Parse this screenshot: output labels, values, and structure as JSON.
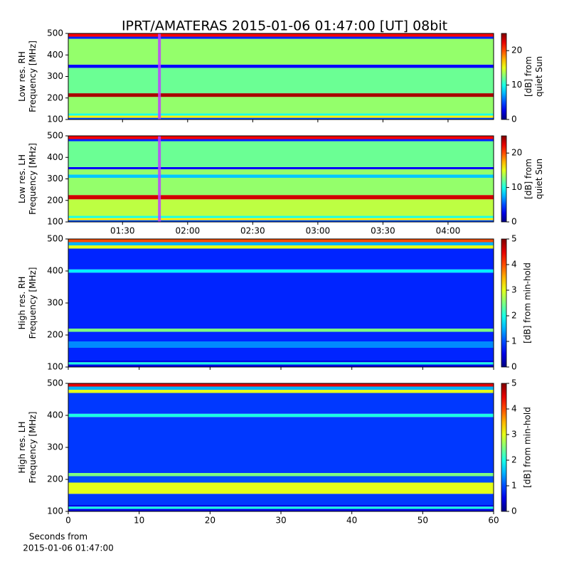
{
  "chart_data": [
    {
      "type": "heatmap",
      "title": "IPRT/AMATERAS 2015-01-06 01:47:00 [UT]   08bit",
      "ylabel": [
        "Low res. RH",
        "Frequency [MHz]"
      ],
      "xlim": [
        65,
        261
      ],
      "xticks": [
        {
          "value": 90,
          "label": "01:30"
        },
        {
          "value": 120,
          "label": "02:00"
        },
        {
          "value": 150,
          "label": "02:30"
        },
        {
          "value": 180,
          "label": "03:00"
        },
        {
          "value": 210,
          "label": "03:30"
        },
        {
          "value": 240,
          "label": "04:00"
        }
      ],
      "xticklabels": false,
      "ylim": [
        100,
        500
      ],
      "yticks": [
        100,
        200,
        300,
        400,
        500
      ],
      "ybins": [
        100,
        108,
        118,
        128,
        205,
        222,
        340,
        355,
        475,
        485,
        500
      ],
      "values": [
        5,
        16,
        10,
        13,
        24,
        12,
        3,
        13,
        4,
        22
      ],
      "marker_x": 107,
      "marker_color": "#c040ff",
      "clim": [
        0,
        25
      ],
      "cticks": [
        0,
        10,
        20
      ],
      "clabel": [
        "[dB] from",
        "quiet Sun"
      ]
    },
    {
      "type": "heatmap",
      "ylabel": [
        "Low res. LH",
        "Frequency [MHz]"
      ],
      "xlim": [
        65,
        261
      ],
      "xticks": [
        {
          "value": 90,
          "label": "01:30"
        },
        {
          "value": 120,
          "label": "02:00"
        },
        {
          "value": 150,
          "label": "02:30"
        },
        {
          "value": 180,
          "label": "03:00"
        },
        {
          "value": 210,
          "label": "03:30"
        },
        {
          "value": 240,
          "label": "04:00"
        }
      ],
      "xticklabels": true,
      "ylim": [
        100,
        500
      ],
      "yticks": [
        100,
        200,
        300,
        400,
        500
      ],
      "ybins": [
        100,
        108,
        118,
        128,
        205,
        225,
        305,
        320,
        345,
        355,
        475,
        485,
        500
      ],
      "values": [
        5,
        16,
        10,
        14,
        23,
        13,
        8,
        13,
        3,
        12,
        4,
        22
      ],
      "marker_x": 107,
      "marker_color": "#c040ff",
      "clim": [
        0,
        25
      ],
      "cticks": [
        0,
        10,
        20
      ],
      "clabel": [
        "[dB] from",
        "quiet Sun"
      ]
    },
    {
      "type": "heatmap",
      "ylabel": [
        "High res. RH",
        "Frequency [MHz]"
      ],
      "xlim": [
        0,
        60
      ],
      "xticks": [
        0,
        10,
        20,
        30,
        40,
        50,
        60
      ],
      "xticklabels": false,
      "ylim": [
        100,
        500
      ],
      "yticks": [
        100,
        200,
        300,
        400,
        500
      ],
      "ybins": [
        100,
        108,
        115,
        120,
        160,
        180,
        210,
        220,
        395,
        405,
        470,
        480,
        490,
        500
      ],
      "values": [
        0.5,
        2,
        0.5,
        0.8,
        1.3,
        0.8,
        2.5,
        0.8,
        1.8,
        0.8,
        3,
        1.5,
        4
      ],
      "clim": [
        0,
        5
      ],
      "cticks": [
        0,
        1,
        2,
        3,
        4,
        5
      ],
      "clabel": [
        "[dB] from min-hold"
      ]
    },
    {
      "type": "heatmap",
      "ylabel": [
        "High res. LH",
        "Frequency [MHz]"
      ],
      "xlim": [
        0,
        60
      ],
      "xticks": [
        0,
        10,
        20,
        30,
        40,
        50,
        60
      ],
      "xticklabels": true,
      "xlabel": [
        "Seconds from",
        "2015-01-06 01:47:00"
      ],
      "ylim": [
        100,
        500
      ],
      "yticks": [
        100,
        200,
        300,
        400,
        500
      ],
      "ybins": [
        100,
        108,
        115,
        120,
        155,
        190,
        210,
        220,
        395,
        405,
        470,
        480,
        490,
        500
      ],
      "values": [
        0.5,
        2,
        0.5,
        0.9,
        3,
        1,
        2.5,
        0.9,
        2,
        0.9,
        3,
        1.5,
        4.5
      ],
      "clim": [
        0,
        5
      ],
      "cticks": [
        0,
        1,
        2,
        3,
        4,
        5
      ],
      "clabel": [
        "[dB] from min-hold"
      ]
    }
  ]
}
